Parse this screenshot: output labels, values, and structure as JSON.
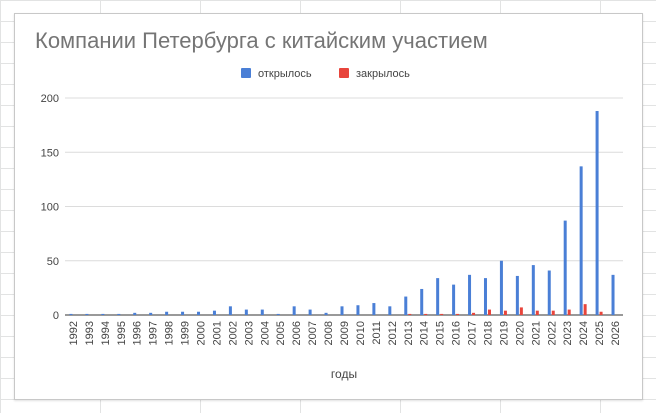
{
  "chart_data": {
    "type": "bar",
    "title": "Компании Петербурга с китайским участием",
    "xlabel": "годы",
    "ylabel": "",
    "ylim": [
      0,
      200
    ],
    "yticks": [
      0,
      50,
      100,
      150,
      200
    ],
    "grid": true,
    "legend_position": "top",
    "categories": [
      "1992",
      "1993",
      "1994",
      "1995",
      "1996",
      "1997",
      "1998",
      "1999",
      "2000",
      "2001",
      "2002",
      "2003",
      "2004",
      "2005",
      "2006",
      "2007",
      "2008",
      "2009",
      "2010",
      "2011",
      "2012",
      "2013",
      "2014",
      "2015",
      "2016",
      "2017",
      "2018",
      "2019",
      "2020",
      "2021",
      "2022",
      "2023",
      "2024",
      "2025",
      "2026"
    ],
    "series": [
      {
        "name": "открылось",
        "color": "#4a7fd6",
        "values": [
          1,
          1,
          1,
          1,
          2,
          2,
          3,
          3,
          3,
          4,
          8,
          5,
          5,
          1,
          8,
          5,
          2,
          8,
          9,
          11,
          8,
          17,
          24,
          34,
          28,
          37,
          34,
          50,
          36,
          46,
          41,
          87,
          137,
          188,
          37
        ]
      },
      {
        "name": "закрылось",
        "color": "#e8453c",
        "values": [
          0,
          0,
          0,
          0,
          0,
          0,
          0,
          0,
          0,
          0,
          0,
          0,
          0,
          0,
          0,
          0,
          0,
          0,
          0,
          0,
          0,
          1,
          1,
          1,
          1,
          2,
          5,
          4,
          7,
          4,
          4,
          5,
          10,
          3,
          0
        ]
      }
    ]
  }
}
